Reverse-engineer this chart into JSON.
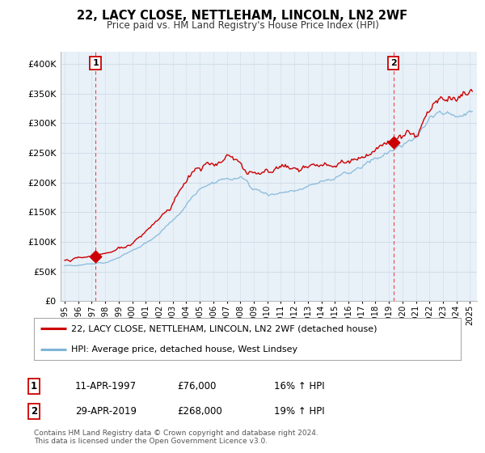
{
  "title": "22, LACY CLOSE, NETTLEHAM, LINCOLN, LN2 2WF",
  "subtitle": "Price paid vs. HM Land Registry's House Price Index (HPI)",
  "legend_line1": "22, LACY CLOSE, NETTLEHAM, LINCOLN, LN2 2WF (detached house)",
  "legend_line2": "HPI: Average price, detached house, West Lindsey",
  "sale1_date": "11-APR-1997",
  "sale1_price": "£76,000",
  "sale1_hpi": "16% ↑ HPI",
  "sale2_date": "29-APR-2019",
  "sale2_price": "£268,000",
  "sale2_hpi": "19% ↑ HPI",
  "footnote1": "Contains HM Land Registry data © Crown copyright and database right 2024.",
  "footnote2": "This data is licensed under the Open Government Licence v3.0.",
  "red_line_color": "#cc0000",
  "blue_line_color": "#7eb5d6",
  "marker_color": "#cc0000",
  "vline_color": "#ee4444",
  "grid_color": "#d0dde8",
  "bg_color": "#ffffff",
  "plot_bg_color": "#e8f0f8",
  "ylim_min": 0,
  "ylim_max": 420000,
  "sale1_x": 1997.28,
  "sale1_y": 76000,
  "sale2_x": 2019.33,
  "sale2_y": 268000,
  "yticks": [
    0,
    50000,
    100000,
    150000,
    200000,
    250000,
    300000,
    350000,
    400000
  ],
  "xmin": 1994.7,
  "xmax": 2025.5
}
